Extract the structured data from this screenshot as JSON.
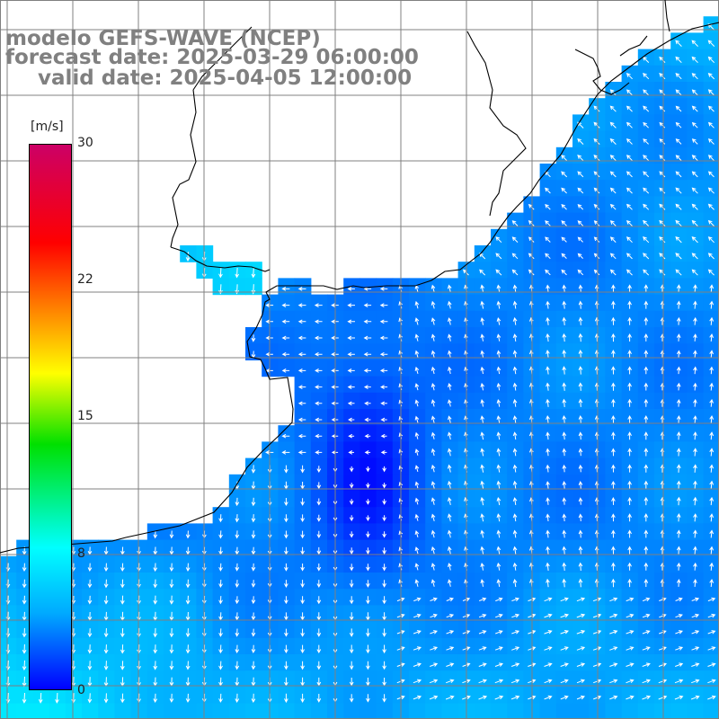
{
  "title": {
    "line1": "modelo GEFS-WAVE (NCEP)",
    "line2": "forecast date: 2025-03-29 06:00:00",
    "line3": "valid date: 2025-04-05 12:00:00"
  },
  "colorbar": {
    "unit": "[m/s]",
    "ticks": [
      "30",
      "22",
      "15",
      "8",
      "0"
    ],
    "min": 0,
    "max": 30,
    "colors": [
      "#0000ff",
      "#00aaff",
      "#00ffff",
      "#00e000",
      "#ffff00",
      "#ff8000",
      "#ff0000",
      "#cc0066"
    ]
  },
  "map": {
    "field": "wind speed and direction",
    "land_color": "#ffffff",
    "grid_color": "#808080",
    "coast_color": "#000000"
  }
}
